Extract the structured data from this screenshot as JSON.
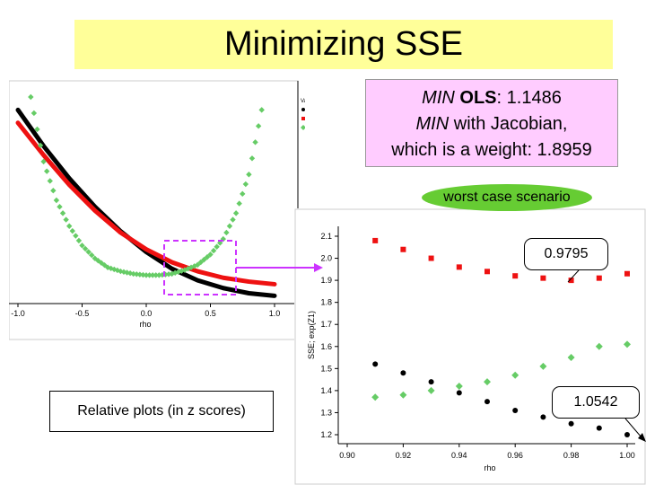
{
  "slide": {
    "title": "Minimizing SSE"
  },
  "callouts": {
    "min_ols_label": "MIN",
    "min_ols_bold": "OLS",
    "min_ols_value": ": 1.1486",
    "min_jac_label": "MIN",
    "min_jac_text": " with Jacobian,",
    "weight_line": "which is a weight: 1.8959",
    "worst_case": "worst case scenario",
    "relative_plots": "Relative plots (in z scores)",
    "top_value": "0.9795",
    "bottom_value": "1.0542"
  },
  "colors": {
    "series1": "#000000",
    "series2": "#ee1111",
    "series3": "#66cc66",
    "title_bg": "#ffff99",
    "callout_bg": "#ffccff",
    "ellipse": "#66cc33",
    "highlight": "#cc33ff"
  },
  "chart_data": [
    {
      "type": "line",
      "title": "",
      "xlabel": "rho",
      "ylabel": "",
      "xlim": [
        -1.0,
        1.0
      ],
      "xticks": [
        "-1.0",
        "-0.5",
        "0.0",
        "0.5",
        "1.0"
      ],
      "legend": {
        "title": "Variable",
        "position": "top-right",
        "entries": [
          "SSE-OLS",
          "SSE-SAR",
          "exp(Z1)"
        ]
      },
      "series": [
        {
          "name": "SSE-OLS",
          "color": "#000000",
          "x": [
            -1.0,
            -0.8,
            -0.6,
            -0.4,
            -0.2,
            0.0,
            0.2,
            0.4,
            0.6,
            0.8,
            1.0
          ],
          "y": [
            2.1,
            1.82,
            1.57,
            1.35,
            1.16,
            1.0,
            0.87,
            0.78,
            0.72,
            0.68,
            0.66
          ]
        },
        {
          "name": "SSE-SAR",
          "color": "#ee1111",
          "x": [
            -1.0,
            -0.8,
            -0.6,
            -0.4,
            -0.2,
            0.0,
            0.2,
            0.4,
            0.6,
            0.8,
            1.0
          ],
          "y": [
            2.0,
            1.75,
            1.52,
            1.32,
            1.15,
            1.02,
            0.92,
            0.85,
            0.8,
            0.77,
            0.75
          ]
        },
        {
          "name": "exp(Z1)",
          "color": "#66cc66",
          "x": [
            -1.0,
            -0.9,
            -0.8,
            -0.7,
            -0.6,
            -0.5,
            -0.4,
            -0.3,
            -0.2,
            -0.1,
            0.0,
            0.1,
            0.2,
            0.3,
            0.4,
            0.5,
            0.6,
            0.7,
            0.8,
            0.9,
            1.0
          ],
          "y": [
            3.0,
            2.2,
            1.7,
            1.4,
            1.2,
            1.05,
            0.95,
            0.88,
            0.85,
            0.83,
            0.82,
            0.82,
            0.83,
            0.86,
            0.9,
            0.98,
            1.1,
            1.3,
            1.6,
            2.1,
            3.0
          ]
        }
      ]
    },
    {
      "type": "scatter",
      "title": "",
      "xlabel": "rho",
      "ylabel": "SSE; exp(Z1)",
      "xlim": [
        0.9,
        1.0
      ],
      "ylim": [
        1.2,
        2.1
      ],
      "xticks": [
        "0.90",
        "0.92",
        "0.94",
        "0.96",
        "0.98",
        "1.00"
      ],
      "yticks": [
        "1.2",
        "1.3",
        "1.4",
        "1.5",
        "1.6",
        "1.7",
        "1.8",
        "1.9",
        "2.0",
        "2.1"
      ],
      "series": [
        {
          "name": "SSE-OLS",
          "color": "#000000",
          "marker": "circle",
          "x": [
            0.91,
            0.92,
            0.93,
            0.94,
            0.95,
            0.96,
            0.97,
            0.98,
            0.99,
            1.0
          ],
          "y": [
            1.52,
            1.48,
            1.44,
            1.39,
            1.35,
            1.31,
            1.28,
            1.25,
            1.23,
            1.2
          ]
        },
        {
          "name": "SSE-SAR",
          "color": "#ee1111",
          "marker": "square",
          "x": [
            0.91,
            0.92,
            0.93,
            0.94,
            0.95,
            0.96,
            0.97,
            0.98,
            0.99,
            1.0
          ],
          "y": [
            2.08,
            2.04,
            2.0,
            1.96,
            1.94,
            1.92,
            1.91,
            1.9,
            1.91,
            1.93
          ]
        },
        {
          "name": "exp(Z1)",
          "color": "#66cc66",
          "marker": "diamond",
          "x": [
            0.91,
            0.92,
            0.93,
            0.94,
            0.95,
            0.96,
            0.97,
            0.98,
            0.99,
            1.0
          ],
          "y": [
            1.37,
            1.38,
            1.4,
            1.42,
            1.44,
            1.47,
            1.51,
            1.55,
            1.6,
            1.61
          ]
        }
      ]
    }
  ]
}
